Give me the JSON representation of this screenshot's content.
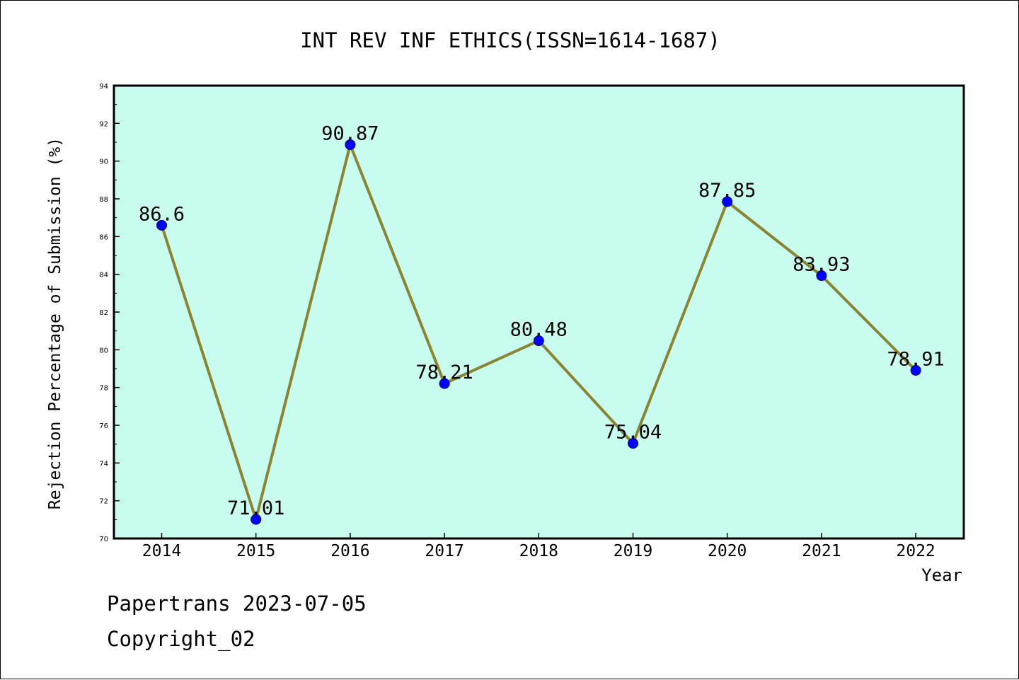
{
  "footer": {
    "line1": "Papertrans 2023-07-05",
    "line2": "Copyright_02"
  },
  "colors": {
    "plot_background": "#c7fcee",
    "line": "#8b8433",
    "marker": "#0000ff",
    "marker_edge": "#000080"
  },
  "chart_data": {
    "type": "line",
    "title": "INT REV INF ETHICS(ISSN=1614-1687)",
    "xlabel": "Year",
    "ylabel": "Rejection Percentage of Submission (%)",
    "categories": [
      "2014",
      "2015",
      "2016",
      "2017",
      "2018",
      "2019",
      "2020",
      "2021",
      "2022"
    ],
    "series": [
      {
        "values": [
          86.6,
          71.01,
          90.87,
          78.21,
          80.48,
          75.04,
          87.85,
          83.93,
          78.91
        ],
        "labels": [
          "86.6",
          "71.01",
          "90.87",
          "78.21",
          "80.48",
          "75.04",
          "87.85",
          "83.93",
          "78.91"
        ]
      }
    ],
    "ylim": [
      70,
      94
    ],
    "yticks": [
      70,
      72,
      74,
      76,
      78,
      80,
      82,
      84,
      86,
      88,
      90,
      92,
      94
    ],
    "grid": false,
    "legend": "none"
  }
}
